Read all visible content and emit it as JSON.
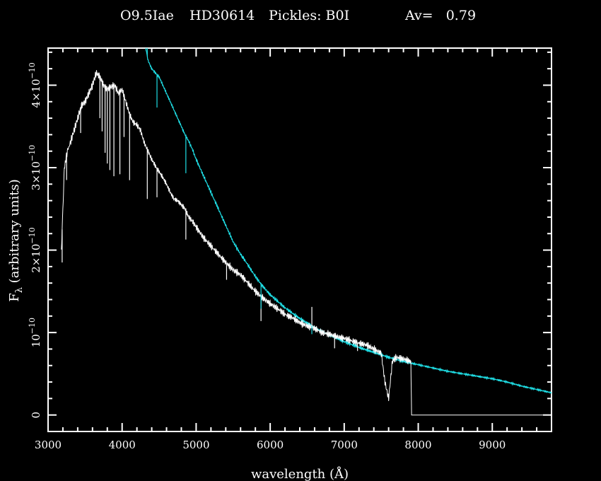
{
  "chart_data": {
    "type": "line",
    "title_parts": {
      "spectral_type": "O9.5Iae",
      "star": "HD30614",
      "pickles": "Pickles: B0I",
      "av": "Av=   0.79"
    },
    "xlabel": "wavelength (Å)",
    "ylabel_prefix": "F",
    "ylabel_sub": "λ",
    "ylabel_rest": " (arbitrary units)",
    "xlim": [
      3000,
      9800
    ],
    "ylim": [
      -2e-11,
      4.45e-10
    ],
    "x_ticks": [
      3000,
      4000,
      5000,
      6000,
      7000,
      8000,
      9000
    ],
    "x_tick_labels": [
      "3000",
      "4000",
      "5000",
      "6000",
      "7000",
      "8000",
      "9000"
    ],
    "y_ticks": [
      0,
      1e-10,
      2e-10,
      3e-10,
      4e-10
    ],
    "y_tick_labels": [
      {
        "base": "0",
        "exp": ""
      },
      {
        "base": "10",
        "exp": "−10"
      },
      {
        "base": "2×10",
        "exp": "−10"
      },
      {
        "base": "3×10",
        "exp": "−10"
      },
      {
        "base": "4×10",
        "exp": "−10"
      }
    ],
    "grid": false,
    "colors": {
      "background": "#000000",
      "axes": "#ffffff",
      "observed": "#ffffff",
      "template": "#1fdfe6"
    },
    "series": [
      {
        "key": "observed",
        "x": [
          3180,
          3220,
          3260,
          3300,
          3350,
          3400,
          3450,
          3500,
          3550,
          3600,
          3650,
          3700,
          3750,
          3800,
          3850,
          3900,
          3950,
          4000,
          4050,
          4100,
          4150,
          4200,
          4250,
          4300,
          4350,
          4400,
          4450,
          4500,
          4550,
          4600,
          4650,
          4700,
          4750,
          4800,
          4850,
          4900,
          4950,
          5000,
          5100,
          5200,
          5300,
          5400,
          5500,
          5600,
          5700,
          5800,
          5900,
          6000,
          6100,
          6200,
          6300,
          6400,
          6500,
          6600,
          6700,
          6800,
          6900,
          7000,
          7100,
          7200,
          7300,
          7400,
          7500,
          7550,
          7600,
          7650,
          7700,
          7800,
          7900,
          7910,
          8000,
          8500,
          9000,
          9500,
          9800
        ],
        "y": [
          2e-10,
          3e-10,
          3.2e-10,
          3.3e-10,
          3.45e-10,
          3.6e-10,
          3.75e-10,
          3.8e-10,
          3.9e-10,
          4e-10,
          4.15e-10,
          4.1e-10,
          4e-10,
          3.95e-10,
          3.98e-10,
          4e-10,
          3.9e-10,
          3.95e-10,
          3.8e-10,
          3.65e-10,
          3.55e-10,
          3.52e-10,
          3.45e-10,
          3.3e-10,
          3.2e-10,
          3.1e-10,
          3.02e-10,
          2.95e-10,
          2.88e-10,
          2.8e-10,
          2.7e-10,
          2.62e-10,
          2.6e-10,
          2.55e-10,
          2.5e-10,
          2.4e-10,
          2.35e-10,
          2.28e-10,
          2.15e-10,
          2.05e-10,
          1.95e-10,
          1.85e-10,
          1.76e-10,
          1.7e-10,
          1.6e-10,
          1.5e-10,
          1.42e-10,
          1.35e-10,
          1.29e-10,
          1.22e-10,
          1.18e-10,
          1.12e-10,
          1.08e-10,
          1.05e-10,
          1e-10,
          9.8e-11,
          9.5e-11,
          9.3e-11,
          9e-11,
          8.7e-11,
          8.5e-11,
          8e-11,
          7.5e-11,
          4e-11,
          2e-11,
          6.5e-11,
          7e-11,
          6.8e-11,
          6.5e-11,
          0.0,
          0.0,
          0.0,
          0.0,
          0.0,
          0.0
        ],
        "lines": [
          [
            3190,
            -4e-11
          ],
          [
            3250,
            -3e-11
          ],
          [
            3440,
            -3e-11
          ],
          [
            3700,
            -5e-11
          ],
          [
            3730,
            -6e-11
          ],
          [
            3770,
            -8e-11
          ],
          [
            3800,
            -9e-11
          ],
          [
            3835,
            -1e-10
          ],
          [
            3889,
            -1.1e-10
          ],
          [
            3970,
            -1e-10
          ],
          [
            4026,
            -5e-11
          ],
          [
            4101,
            -8e-11
          ],
          [
            4340,
            -6e-11
          ],
          [
            4471,
            -3.5e-11
          ],
          [
            4861,
            -3.5e-11
          ],
          [
            5411,
            -2e-11
          ],
          [
            5876,
            -3e-11
          ],
          [
            6870,
            -1.5e-11
          ],
          [
            7180,
            -1e-11
          ]
        ],
        "emission": [
          [
            6563,
            2.5e-11
          ]
        ]
      },
      {
        "key": "template",
        "x": [
          4320,
          4350,
          4400,
          4450,
          4500,
          4550,
          4600,
          4650,
          4700,
          4750,
          4800,
          4850,
          4900,
          4950,
          5000,
          5100,
          5200,
          5300,
          5400,
          5500,
          5600,
          5700,
          5800,
          5900,
          6000,
          6200,
          6400,
          6600,
          6800,
          7000,
          7200,
          7400,
          7600,
          7800,
          8000,
          8200,
          8400,
          8600,
          8800,
          9000,
          9200,
          9400,
          9600,
          9800
        ],
        "y": [
          4.45e-10,
          4.3e-10,
          4.2e-10,
          4.15e-10,
          4.1e-10,
          4e-10,
          3.9e-10,
          3.8e-10,
          3.7e-10,
          3.6e-10,
          3.5e-10,
          3.4e-10,
          3.32e-10,
          3.22e-10,
          3.1e-10,
          2.9e-10,
          2.7e-10,
          2.5e-10,
          2.3e-10,
          2.1e-10,
          1.95e-10,
          1.82e-10,
          1.68e-10,
          1.56e-10,
          1.46e-10,
          1.3e-10,
          1.17e-10,
          1.06e-10,
          9.7e-11,
          8.9e-11,
          8.2e-11,
          7.6e-11,
          7e-11,
          6.5e-11,
          6.1e-11,
          5.7e-11,
          5.3e-11,
          5e-11,
          4.7e-11,
          4.4e-11,
          4e-11,
          3.5e-11,
          3.1e-11,
          2.7e-11
        ],
        "lines": [
          [
            4340,
            5e-11
          ],
          [
            4471,
            -4e-11
          ],
          [
            4861,
            -4.5e-11
          ],
          [
            5876,
            -3e-11
          ],
          [
            6563,
            -1e-11
          ]
        ]
      }
    ]
  }
}
